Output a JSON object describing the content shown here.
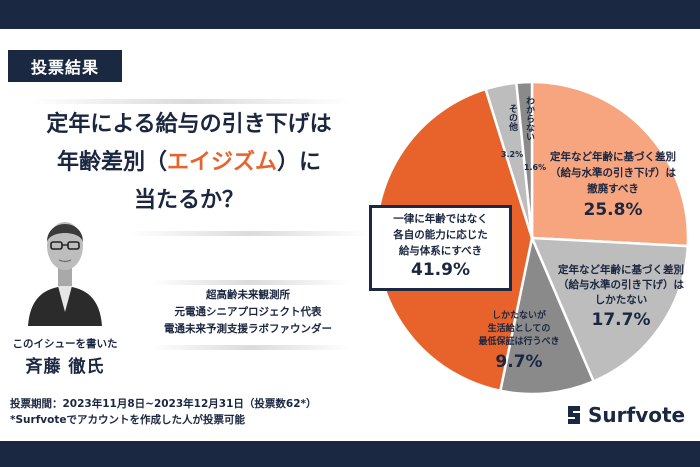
{
  "header": {
    "label": "投票結果"
  },
  "headline": {
    "line1": "定年による給与の引き下げは",
    "line2_pre": "年齢差別（",
    "line2_accent": "エイジズム",
    "line2_post": "）に",
    "line3": "当たるか？"
  },
  "author": {
    "caption": "このイシューを書いた",
    "name": "斉藤 徹氏"
  },
  "affiliation": {
    "line1": "超高齢未来観測所",
    "line2": "元電通シニアプロジェクト代表",
    "line3": "電通未来予測支援ラボファウンダー"
  },
  "vote": {
    "period": "投票期間：2023年11月8日~2023年12月31日（投票数62*）",
    "note": "*Surfvoteでアカウントを作成した人が投票可能"
  },
  "brand": {
    "name": "Surfvote"
  },
  "colors": {
    "navy": "#1b2842",
    "orange": "#e8622b",
    "light_orange": "#f6a57f",
    "gray": "#8a8a8a",
    "light_gray": "#bdbdbd"
  },
  "chart_data": {
    "type": "pie",
    "slices": [
      {
        "label_lines": [
          "定年など年齢に基づく差別",
          "（給与水準の引き下げ）は",
          "撤廃すべき"
        ],
        "value": 25.8,
        "pct": "25.8%",
        "color": "#f6a57f"
      },
      {
        "label_lines": [
          "定年など年齢に基づく差別",
          "（給与水準の引き下げ）は",
          "しかたない"
        ],
        "value": 17.7,
        "pct": "17.7%",
        "color": "#bdbdbd"
      },
      {
        "label_lines": [
          "しかたないが",
          "生活給としての",
          "最低保証は行うべき"
        ],
        "value": 9.7,
        "pct": "9.7%",
        "color": "#8a8a8a"
      },
      {
        "label_lines": [
          "一律に年齢ではなく",
          "各自の能力に応じた",
          "給与体系にすべき"
        ],
        "value": 41.9,
        "pct": "41.9%",
        "color": "#e8622b"
      },
      {
        "label_lines": [
          "その他"
        ],
        "value": 3.2,
        "pct": "3.2%",
        "color": "#bdbdbd"
      },
      {
        "label_lines": [
          "わからない"
        ],
        "value": 1.6,
        "pct": "1.6%",
        "color": "#8a8a8a"
      }
    ]
  }
}
